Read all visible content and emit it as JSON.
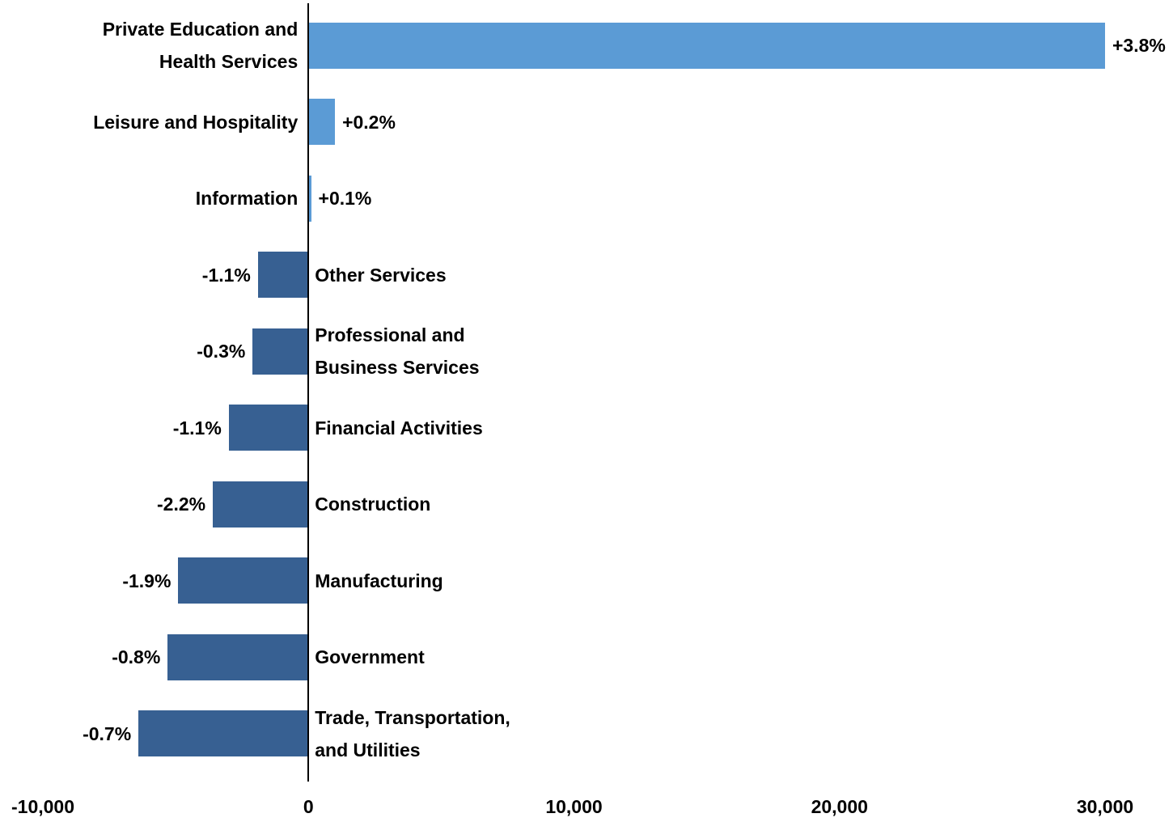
{
  "chart_data": {
    "type": "barh",
    "categories": [
      "Private Education and\nHealth Services",
      "Leisure and Hospitality",
      "Information",
      "Other Services",
      "Professional and\nBusiness Services",
      "Financial Activities",
      "Construction",
      "Manufacturing",
      "Government",
      "Trade, Transportation,\nand Utilities"
    ],
    "values": [
      30000,
      1000,
      100,
      -1900,
      -2100,
      -3000,
      -3600,
      -4900,
      -5300,
      -6400
    ],
    "percent_labels": [
      "+3.8%",
      "+0.2%",
      "+0.1%",
      "-1.1%",
      "-0.3%",
      "-1.1%",
      "-2.2%",
      "-1.9%",
      "-0.8%",
      "-0.7%"
    ],
    "colors": {
      "positive": "#5b9bd5",
      "negative": "#376092"
    },
    "xlim": [
      -10000,
      30000
    ],
    "xticks": [
      {
        "value": -10000,
        "label": "-10,000"
      },
      0,
      {
        "value": 10000,
        "label": "10,000"
      },
      {
        "value": 20000,
        "label": "20,000"
      },
      {
        "value": 30000,
        "label": "30,000"
      }
    ],
    "grid": false
  }
}
